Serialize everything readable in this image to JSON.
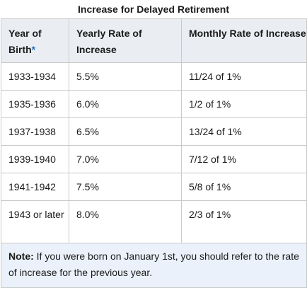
{
  "table": {
    "caption": "Increase for Delayed Retirement",
    "headers": {
      "year": "Year of Birth",
      "footnote_marker": "*",
      "yearly": "Yearly Rate of Increase",
      "monthly": "Monthly Rate of Increase"
    },
    "rows": [
      {
        "year": "1933-1934",
        "yearly": "5.5%",
        "monthly": "11/24 of 1%"
      },
      {
        "year": "1935-1936",
        "yearly": "6.0%",
        "monthly": "1/2 of 1%"
      },
      {
        "year": "1937-1938",
        "yearly": "6.5%",
        "monthly": "13/24 of 1%"
      },
      {
        "year": "1939-1940",
        "yearly": "7.0%",
        "monthly": "7/12 of 1%"
      },
      {
        "year": "1941-1942",
        "yearly": "7.5%",
        "monthly": "5/8 of 1%"
      },
      {
        "year": "1943 or later",
        "yearly": "8.0%",
        "monthly": "2/3 of 1%"
      }
    ],
    "note": {
      "label": "Note:",
      "text": " If you were born on January 1st, you should refer to the rate of increase for the previous year."
    }
  }
}
